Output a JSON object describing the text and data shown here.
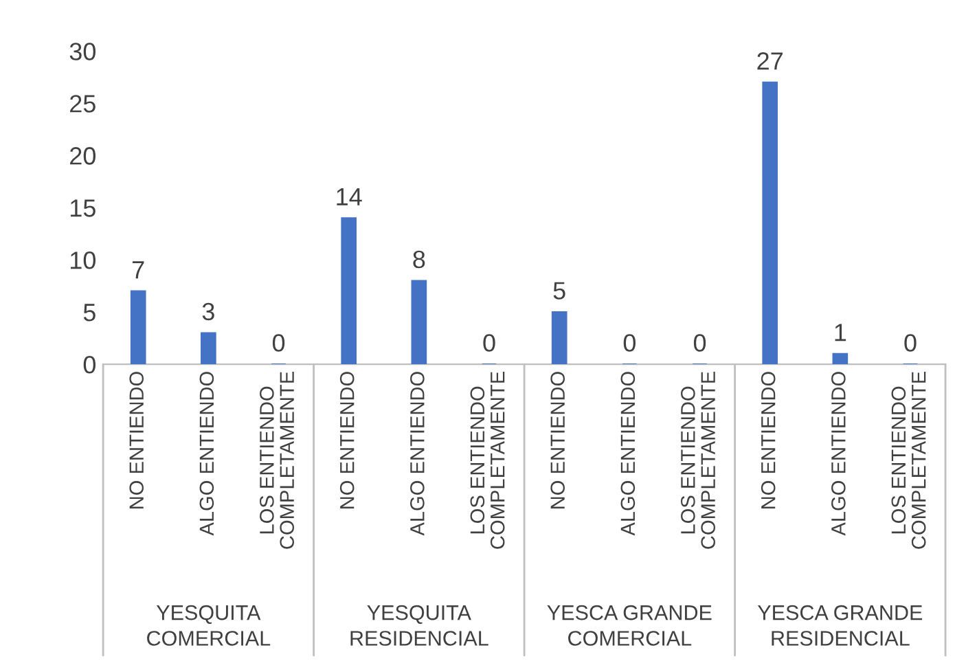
{
  "chart_data": {
    "type": "bar",
    "categories": [
      "NO ENTIENDO",
      "ALGO ENTIENDO",
      "LOS ENTIENDO\nCOMPLETAMENTE",
      "NO ENTIENDO",
      "ALGO ENTIENDO",
      "LOS ENTIENDO\nCOMPLETAMENTE",
      "NO ENTIENDO",
      "ALGO ENTIENDO",
      "LOS ENTIENDO\nCOMPLETAMENTE",
      "NO ENTIENDO",
      "ALGO ENTIENDO",
      "LOS ENTIENDO\nCOMPLETAMENTE"
    ],
    "values": [
      7,
      3,
      0,
      14,
      8,
      0,
      5,
      0,
      0,
      27,
      1,
      0
    ],
    "color": "#4472c4",
    "ylim": [
      0,
      30
    ],
    "yticks": [
      0,
      5,
      10,
      15,
      20,
      25,
      30
    ],
    "grid": false,
    "data_labels": true,
    "annotations": [
      "YESQUITA\nCOMERCIAL",
      "YESQUITA\nRESIDENCIAL",
      "YESCA GRANDE\nCOMERCIAL",
      "YESCA GRANDE\nRESIDENCIAL"
    ]
  }
}
